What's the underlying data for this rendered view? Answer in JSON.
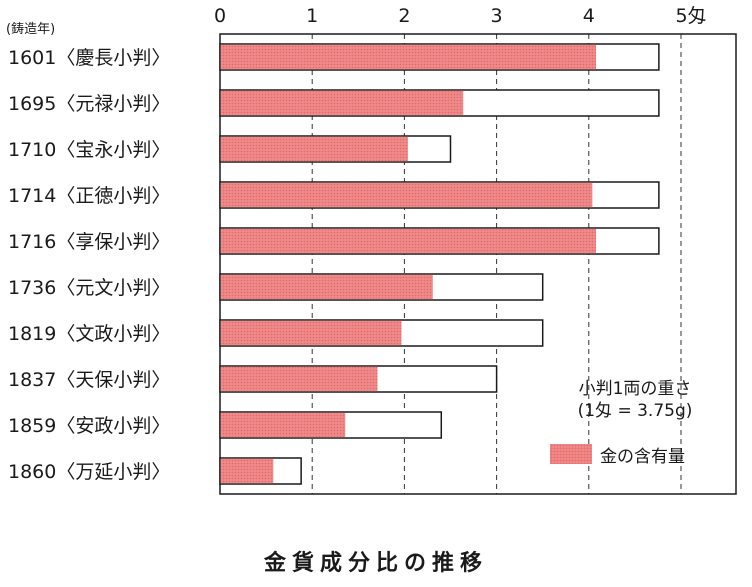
{
  "chart_data": {
    "type": "bar",
    "orientation": "horizontal",
    "title": "金貨成分比の推移",
    "y_header": "(鋳造年)",
    "x_ticks": [
      "0",
      "1",
      "2",
      "3",
      "4",
      "5匁"
    ],
    "xlim": [
      0,
      5.6
    ],
    "grid": "vertical dashed",
    "categories": [
      "1601〈慶長小判〉",
      "1695〈元禄小判〉",
      "1710〈宝永小判〉",
      "1714〈正徳小判〉",
      "1716〈享保小判〉",
      "1736〈元文小判〉",
      "1819〈文政小判〉",
      "1837〈天保小判〉",
      "1859〈安政小判〉",
      "1860〈万延小判〉"
    ],
    "series": [
      {
        "name": "小判1両の重さ",
        "values": [
          4.76,
          4.76,
          2.5,
          4.76,
          4.76,
          3.5,
          3.5,
          3.0,
          2.4,
          0.88
        ]
      },
      {
        "name": "金の含有量",
        "values": [
          4.07,
          2.63,
          2.03,
          4.03,
          4.07,
          2.3,
          1.96,
          1.7,
          1.35,
          0.57
        ]
      }
    ],
    "legend": {
      "weight_label_line1": "小判1両の重さ",
      "weight_label_line2": "(1匁 = 3.75g)",
      "gold_label": "金の含有量",
      "placement": "bottom-right"
    },
    "colors": {
      "gold": "#f08a8a",
      "weight_fill": "#ffffff",
      "outline": "#1a1a1a"
    }
  }
}
